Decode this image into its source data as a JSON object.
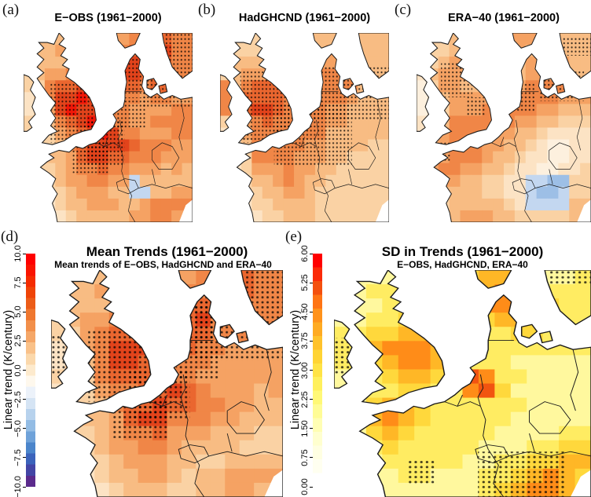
{
  "chart_data": {
    "type": "map",
    "panels": [
      {
        "id": "a",
        "label": "(a)",
        "title": "E−OBS (1961−2000)",
        "palette": "trend",
        "grid": [
          "3444443355667766",
          "3445554456778866",
          "3444455568888766",
          "3455666688877766",
          "3367788877767755",
          "2468898866656655",
          "2458988766555566",
          "3346789866556666",
          "3335678986655566",
          "2334678888766655",
          "2344578877666555",
          "2334566766555454",
          "2234556655b44444",
          "2233455544bb4455",
          "2223445554456666",
          "2222344444556655"
        ],
        "stipple": [
          [
            16,
            26,
            26,
            32
          ],
          [
            36,
            46,
            24,
            24
          ],
          [
            28,
            58,
            22,
            16
          ],
          [
            56,
            12,
            16,
            20
          ],
          [
            70,
            16,
            30,
            24
          ],
          [
            54,
            34,
            18,
            16
          ],
          [
            84,
            0,
            16,
            16
          ]
        ]
      },
      {
        "id": "b",
        "label": "(b)",
        "title": "HadGHCND (1961−2000)",
        "palette": "trend",
        "grid": [
          "3333334444444444",
          "3333334444555444",
          "3444444455555444",
          "3455554466665444",
          "6467775566666444",
          "6477776666665444",
          "6478876666554444",
          "3356766666554444",
          "2256666666444444",
          "2246666655444433",
          "0236666555443333",
          "0235556554433333",
          "0234456544333333",
          "0233445543333333",
          "0023344443333333",
          "0022334443333333"
        ],
        "stipple": [
          [
            12,
            20,
            32,
            38
          ],
          [
            32,
            38,
            46,
            32
          ],
          [
            54,
            18,
            46,
            28
          ]
        ]
      },
      {
        "id": "c",
        "label": "(c)",
        "title": "ERA−40 (1961−2000)",
        "palette": "trend",
        "grid": [
          "3334444455554444",
          "2334444455444444",
          "2345554444555544",
          "2455544444555444",
          "1355444455666655",
          "1245555556666555",
          "1235556666655444",
          "2246666665544333",
          "2356666554432222",
          "2456665544321122",
          "3556665443221122",
          "3566554432211223",
          "2455443322bbcc33",
          "2344443322bccb33",
          "2334444432bbbb44",
          "2234555443333344"
        ],
        "stipple": [
          [
            14,
            16,
            18,
            18
          ],
          [
            50,
            26,
            18,
            16
          ],
          [
            70,
            20,
            26,
            16
          ],
          [
            8,
            58,
            12,
            10
          ],
          [
            28,
            34,
            12,
            10
          ],
          [
            84,
            2,
            16,
            10
          ]
        ]
      },
      {
        "id": "d",
        "label": "(d)",
        "title": "Mean Trends (1961−2000)",
        "subtitle": "Mean trends of E−OBS, HadGHCND and ERA−40",
        "palette": "trend",
        "grid": [
          "3444444455667766",
          "3445554456677766",
          "3444555567777666",
          "3455666677866666",
          "3356778887766655",
          "2456888877665555",
          "2446887766655555",
          "3336777666555555",
          "2335667787655545",
          "2334677877665544",
          "2344578866655444",
          "2334566755544433",
          "2234556654444333",
          "2233455544334444",
          "2223445543445555",
          "2222344433445544"
        ],
        "stipple": [
          [
            16,
            26,
            26,
            32
          ],
          [
            34,
            44,
            26,
            22
          ],
          [
            26,
            58,
            24,
            16
          ],
          [
            52,
            10,
            18,
            22
          ],
          [
            62,
            14,
            38,
            26
          ],
          [
            54,
            34,
            18,
            14
          ],
          [
            0,
            28,
            12,
            18
          ],
          [
            84,
            0,
            16,
            14
          ]
        ]
      },
      {
        "id": "e",
        "label": "(e)",
        "title": "SD in Trends (1961−2000)",
        "subtitle": "E−OBS, HadGHCND, ERA−40",
        "palette": "sd",
        "grid": [
          "3333334456654334",
          "3344434456776444",
          "3334434447787544",
          "3344544445665444",
          "4455665444455444",
          "4467776544444444",
          "4456776544433333",
          "3345665487443333",
          "3344554478533333",
          "3356654444443333",
          "3367654444433333",
          "3356544444333344",
          "2345444443334455",
          "2334444433445566",
          "2233443334456765",
          "2223333334567765"
        ],
        "stipple": [
          [
            56,
            80,
            34,
            20
          ],
          [
            28,
            84,
            12,
            10
          ],
          [
            0,
            30,
            10,
            16
          ],
          [
            84,
            0,
            16,
            6
          ]
        ]
      }
    ],
    "palettes": {
      "trend": {
        "0": "#ffffff",
        "1": "#fdf0de",
        "2": "#fce3c4",
        "3": "#fad2a4",
        "4": "#f8bc83",
        "5": "#f5a263",
        "6": "#f08647",
        "7": "#ea662f",
        "8": "#e2431b",
        "9": "#f21708",
        "b": "#c3d7f0",
        "c": "#9dbfe6"
      },
      "sd": {
        "0": "#ffffff",
        "1": "#fffff0",
        "2": "#ffffc8",
        "3": "#fff89e",
        "4": "#ffec62",
        "5": "#ffd83c",
        "6": "#ffb726",
        "7": "#ff8c18",
        "8": "#f25410",
        "9": "#de220c"
      }
    },
    "colorbars": {
      "trend": {
        "label": "Linear trend (K/century)",
        "range": [
          -10.0,
          10.0
        ],
        "ticks": [
          "10.0",
          "7.5",
          "5.0",
          "2.5",
          "0.0",
          "−2.5",
          "−5.0",
          "−7.5",
          "−10.0"
        ],
        "colors": [
          "#ff0000",
          "#fa1400",
          "#f52b00",
          "#ef4407",
          "#ec5c18",
          "#ef772f",
          "#f28f4a",
          "#f5a768",
          "#f9c189",
          "#fbd8ab",
          "#fdeacd",
          "#fef8ed",
          "#ecf2fa",
          "#d5e4f4",
          "#b7d2ed",
          "#93bce4",
          "#6fa2d9",
          "#4b85cb",
          "#3b63bb",
          "#4345a5",
          "#5b2a8c"
        ]
      },
      "sd": {
        "label": "Linear trend (K/century)",
        "range": [
          0.0,
          6.0
        ],
        "ticks": [
          "6.00",
          "5.25",
          "4.50",
          "3.75",
          "3.00",
          "2.25",
          "1.50",
          "0.75",
          "0.00"
        ],
        "colors": [
          "#ff0000",
          "#fb2a08",
          "#f4500e",
          "#ff7414",
          "#ff921b",
          "#ffab22",
          "#ffc22b",
          "#ffd434",
          "#ffe345",
          "#fff05c",
          "#fff877",
          "#fffc96",
          "#fffeb4",
          "#ffffcf",
          "#ffffe2",
          "#fffff0",
          "#ffffff"
        ]
      }
    }
  }
}
